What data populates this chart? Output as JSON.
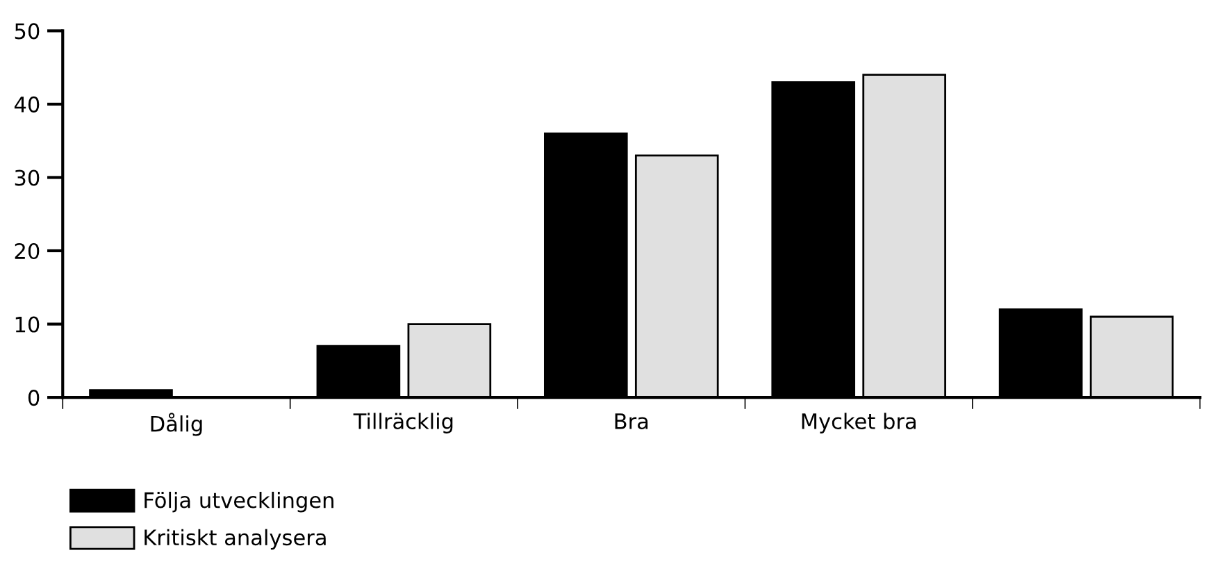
{
  "chart_data": {
    "type": "bar",
    "categories": [
      "Dålig",
      "Tillräcklig",
      "Bra",
      "Mycket bra",
      null
    ],
    "series": [
      {
        "name": "Följa utvecklingen",
        "color": "#000000",
        "values": [
          1,
          7,
          36,
          43,
          12
        ]
      },
      {
        "name": "Kritiskt analysera",
        "color": "#e0e0e0",
        "values": [
          0,
          10,
          33,
          44,
          11
        ]
      }
    ],
    "ylim": [
      0,
      50
    ],
    "yticks": [
      0,
      10,
      20,
      30,
      40,
      50
    ],
    "grid": false,
    "legend": "bottom left"
  }
}
